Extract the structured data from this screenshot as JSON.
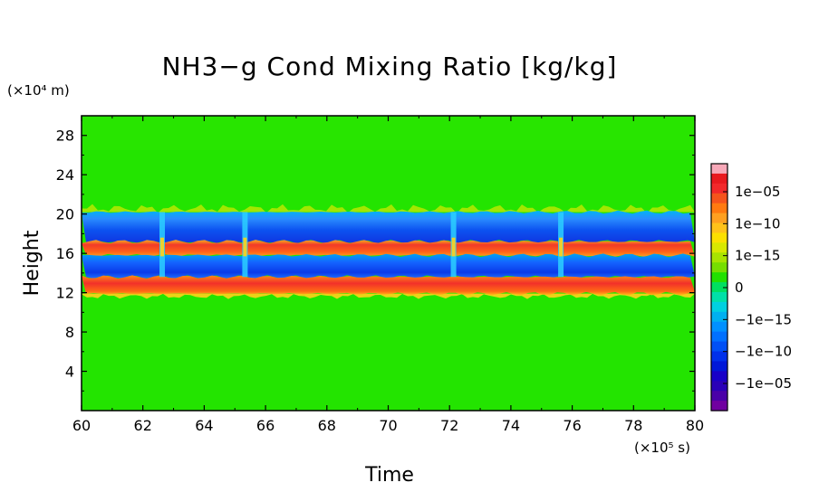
{
  "chart_data": {
    "type": "heatmap",
    "title": "NH3−g Cond Mixing Ratio [kg/kg]",
    "xlabel": "Time",
    "ylabel": "Height",
    "x_unit_label": "(×10⁵ s)",
    "y_unit_label": "(×10⁴ m)",
    "xlim": [
      60,
      80
    ],
    "ylim": [
      0,
      30
    ],
    "x_ticks": [
      60,
      62,
      64,
      66,
      68,
      70,
      72,
      74,
      76,
      78,
      80
    ],
    "y_ticks": [
      4,
      8,
      12,
      16,
      20,
      24,
      28
    ],
    "x_tick_labels": [
      "60",
      "62",
      "64",
      "66",
      "68",
      "70",
      "72",
      "74",
      "76",
      "78",
      "80"
    ],
    "y_tick_labels": [
      "4",
      "8",
      "12",
      "16",
      "20",
      "24",
      "28"
    ],
    "colorbar_ticks": [
      "1e−05",
      "1e−10",
      "1e−15",
      "0",
      "−1e−15",
      "−1e−10",
      "−1e−05"
    ],
    "colorbar_colors": [
      "#f7a8b8",
      "#e8191e",
      "#f2282a",
      "#f5541c",
      "#ff7a10",
      "#ffa020",
      "#ffc21a",
      "#fbe000",
      "#d8e800",
      "#a8e400",
      "#76de00",
      "#22e000",
      "#00e060",
      "#00e0a8",
      "#00d0e0",
      "#00b0f0",
      "#0090ff",
      "#0070ff",
      "#0050f5",
      "#0030ea",
      "#0018d8",
      "#1800c8",
      "#2a00b8",
      "#4a00a8",
      "#7000a0"
    ],
    "background_color": "#23e400",
    "bands": [
      {
        "name": "upper negative",
        "y_from": 17.2,
        "y_to": 20.2,
        "level": -1e-10,
        "color": "#1a66f2"
      },
      {
        "name": "upper positive",
        "y_from": 15.8,
        "y_to": 17.2,
        "level": 1e-10,
        "color": "#f24a2a"
      },
      {
        "name": "lower negative",
        "y_from": 13.6,
        "y_to": 15.8,
        "level": -1e-10,
        "color": "#1a66f2"
      },
      {
        "name": "lower positive",
        "y_from": 11.9,
        "y_to": 13.6,
        "level": 1e-10,
        "color": "#f24a2a"
      }
    ],
    "disruptions_x": [
      62.6,
      65.3,
      72.1,
      75.6
    ]
  }
}
